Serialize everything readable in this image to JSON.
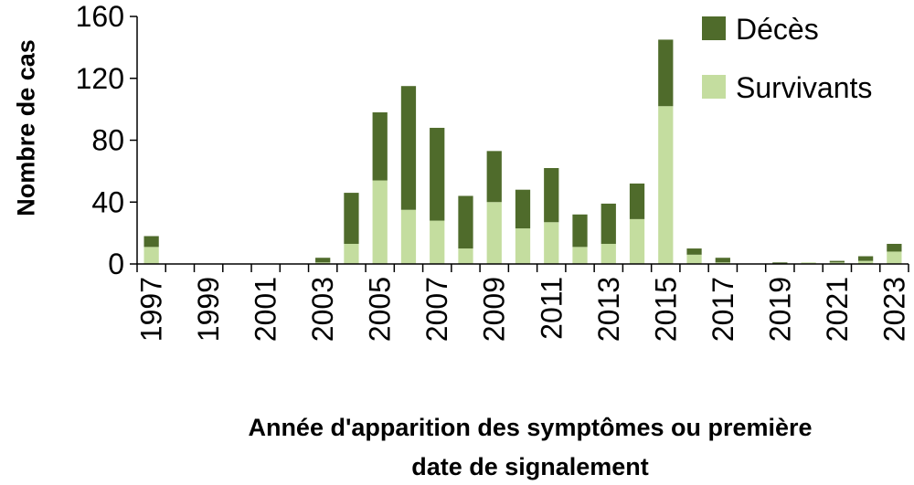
{
  "chart_data": {
    "type": "bar",
    "stacked": true,
    "categories": [
      "1997",
      "1998",
      "1999",
      "2000",
      "2001",
      "2002",
      "2003",
      "2004",
      "2005",
      "2006",
      "2007",
      "2008",
      "2009",
      "2010",
      "2011",
      "2012",
      "2013",
      "2014",
      "2015",
      "2016",
      "2017",
      "2018",
      "2019",
      "2020",
      "2021",
      "2022",
      "2023"
    ],
    "x_tick_labels": [
      "1997",
      "1999",
      "2001",
      "2003",
      "2005",
      "2007",
      "2009",
      "2011",
      "2013",
      "2015",
      "2017",
      "2019",
      "2021",
      "2023"
    ],
    "series": [
      {
        "name": "Survivants",
        "color": "#c4dd9f",
        "values": [
          11,
          0,
          0,
          0,
          0,
          0,
          1,
          13,
          54,
          35,
          28,
          10,
          40,
          23,
          27,
          11,
          13,
          29,
          102,
          6,
          1,
          0,
          0,
          1,
          1,
          2,
          8
        ]
      },
      {
        "name": "Décès",
        "color": "#4f6b2b",
        "values": [
          7,
          0,
          0,
          0,
          0,
          0,
          3,
          33,
          44,
          80,
          60,
          34,
          33,
          25,
          35,
          21,
          26,
          23,
          43,
          4,
          3,
          0,
          1,
          0,
          1,
          3,
          5
        ]
      }
    ],
    "ylabel": "Nombre de cas",
    "xlabel_lines": [
      "Année d'apparition des symptômes ou première",
      "date de signalement"
    ],
    "ylim": [
      0,
      160
    ],
    "yticks": [
      0,
      40,
      80,
      120,
      160
    ],
    "legend_position": "top-right",
    "legend_order": [
      "Décès",
      "Survivants"
    ],
    "grid": false
  }
}
